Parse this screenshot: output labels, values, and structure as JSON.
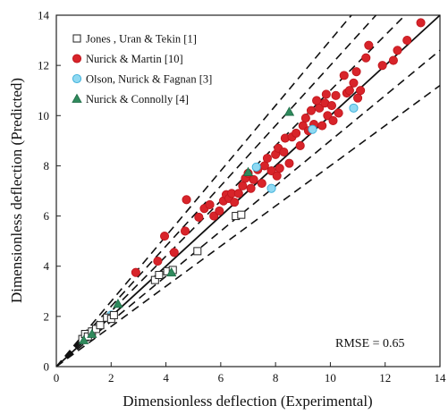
{
  "chart_data": {
    "type": "scatter",
    "title": "",
    "xlabel": "Dimensionless deflection (Experimental)",
    "ylabel": "Dimensionless deflection (Predicted)",
    "xlim": [
      0,
      14
    ],
    "ylim": [
      0,
      14
    ],
    "xticks": [
      0,
      2,
      4,
      6,
      8,
      10,
      12,
      14
    ],
    "yticks": [
      0,
      2,
      4,
      6,
      8,
      10,
      12,
      14
    ],
    "grid": false,
    "legend_position": "top-left",
    "annotation": "RMSE = 0.65",
    "reference_lines": [
      {
        "name": "y = x",
        "slope": 1.0,
        "style": "solid"
      },
      {
        "slope": 1.3,
        "style": "dashed"
      },
      {
        "slope": 1.2,
        "style": "dashed"
      },
      {
        "slope": 1.1,
        "style": "dashed"
      },
      {
        "slope": 0.9,
        "style": "dashed"
      },
      {
        "slope": 0.8,
        "style": "dashed"
      }
    ],
    "series": [
      {
        "name": "Jones , Uran & Tekin [1]",
        "marker": "open-square",
        "color": "#222222",
        "fill": "#ffffff",
        "points": [
          [
            0.95,
            1.1
          ],
          [
            1.05,
            1.3
          ],
          [
            1.15,
            1.2
          ],
          [
            1.3,
            1.4
          ],
          [
            1.45,
            1.5
          ],
          [
            1.6,
            1.65
          ],
          [
            1.85,
            1.95
          ],
          [
            2.0,
            1.9
          ],
          [
            2.1,
            2.05
          ],
          [
            3.6,
            3.45
          ],
          [
            3.75,
            3.65
          ],
          [
            4.05,
            3.8
          ],
          [
            4.25,
            3.85
          ],
          [
            5.15,
            4.6
          ],
          [
            6.55,
            6.0
          ],
          [
            6.75,
            6.05
          ]
        ]
      },
      {
        "name": "Nurick & Martin [10]",
        "marker": "circle",
        "color": "#c0161d",
        "fill": "#d8242a",
        "points": [
          [
            2.9,
            3.75
          ],
          [
            3.7,
            4.2
          ],
          [
            4.3,
            4.55
          ],
          [
            4.7,
            5.4
          ],
          [
            4.75,
            6.65
          ],
          [
            3.95,
            5.2
          ],
          [
            5.2,
            5.95
          ],
          [
            5.4,
            6.3
          ],
          [
            5.6,
            6.45
          ],
          [
            5.75,
            6.0
          ],
          [
            5.95,
            6.2
          ],
          [
            6.1,
            6.6
          ],
          [
            6.2,
            6.85
          ],
          [
            6.3,
            6.7
          ],
          [
            6.4,
            6.9
          ],
          [
            6.5,
            6.55
          ],
          [
            6.65,
            6.9
          ],
          [
            6.8,
            7.2
          ],
          [
            6.9,
            7.5
          ],
          [
            7.0,
            7.7
          ],
          [
            7.1,
            7.1
          ],
          [
            7.2,
            7.45
          ],
          [
            7.35,
            7.85
          ],
          [
            7.5,
            7.3
          ],
          [
            7.6,
            8.0
          ],
          [
            7.7,
            8.3
          ],
          [
            7.85,
            7.8
          ],
          [
            8.0,
            8.45
          ],
          [
            8.05,
            7.6
          ],
          [
            8.1,
            8.7
          ],
          [
            8.15,
            7.9
          ],
          [
            8.3,
            8.55
          ],
          [
            8.35,
            9.1
          ],
          [
            8.5,
            8.1
          ],
          [
            8.6,
            9.15
          ],
          [
            8.75,
            9.3
          ],
          [
            8.9,
            8.8
          ],
          [
            9.0,
            9.6
          ],
          [
            9.1,
            9.9
          ],
          [
            9.2,
            9.4
          ],
          [
            9.3,
            10.2
          ],
          [
            9.4,
            9.65
          ],
          [
            9.5,
            10.6
          ],
          [
            9.6,
            10.3
          ],
          [
            9.7,
            9.6
          ],
          [
            9.8,
            10.5
          ],
          [
            9.9,
            10.0
          ],
          [
            10.05,
            10.4
          ],
          [
            10.2,
            10.8
          ],
          [
            10.3,
            10.1
          ],
          [
            10.5,
            11.6
          ],
          [
            10.6,
            10.9
          ],
          [
            10.7,
            11.0
          ],
          [
            10.85,
            11.3
          ],
          [
            10.95,
            11.75
          ],
          [
            11.0,
            10.7
          ],
          [
            11.1,
            11.0
          ],
          [
            11.3,
            12.3
          ],
          [
            11.4,
            12.8
          ],
          [
            11.9,
            12.0
          ],
          [
            12.3,
            12.2
          ],
          [
            12.45,
            12.6
          ],
          [
            12.8,
            13.0
          ],
          [
            13.3,
            13.7
          ],
          [
            9.85,
            10.85
          ],
          [
            10.1,
            9.8
          ]
        ]
      },
      {
        "name": "Olson, Nurick & Fagnan [3]",
        "marker": "circle",
        "color": "#3aaed8",
        "fill": "#8fd9f2",
        "points": [
          [
            7.3,
            7.95
          ],
          [
            7.85,
            7.1
          ],
          [
            9.35,
            9.45
          ],
          [
            10.85,
            10.3
          ],
          [
            2.0,
            2.05
          ]
        ]
      },
      {
        "name": "Nurick & Connolly [4]",
        "marker": "triangle",
        "color": "#1e6b46",
        "fill": "#2f8a5c",
        "points": [
          [
            1.0,
            1.05
          ],
          [
            1.3,
            1.3
          ],
          [
            2.25,
            2.5
          ],
          [
            4.2,
            3.75
          ],
          [
            7.0,
            7.75
          ],
          [
            8.5,
            10.15
          ]
        ]
      }
    ]
  }
}
